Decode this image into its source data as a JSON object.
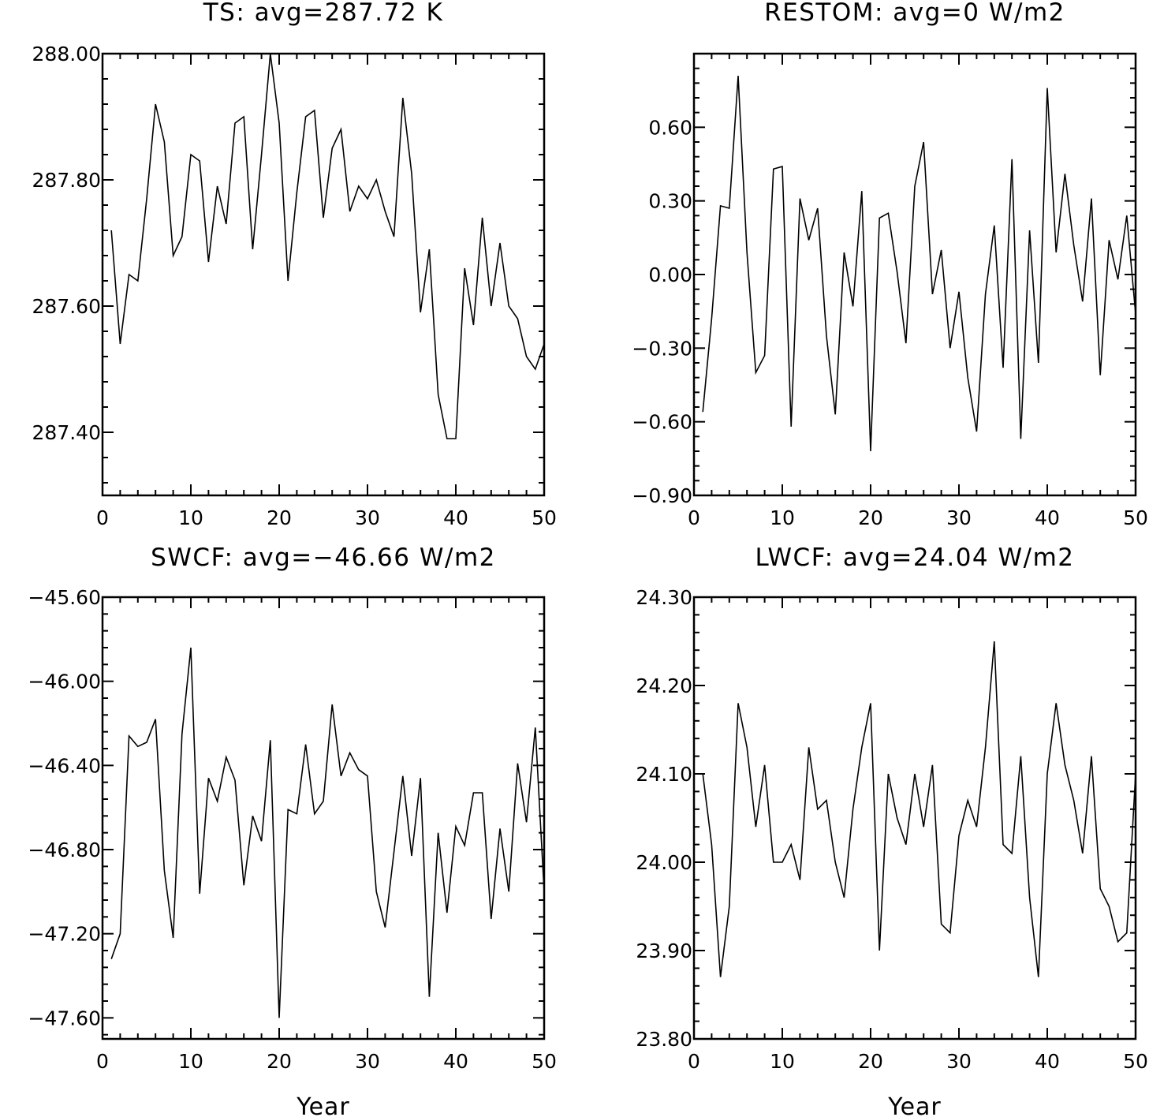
{
  "chart_data": [
    {
      "type": "line",
      "title": "TS: avg=287.72 K",
      "xlabel": "",
      "ylabel": "",
      "xlim": [
        0,
        50
      ],
      "ylim": [
        287.3,
        288.0
      ],
      "xticks": [
        0,
        10,
        20,
        30,
        40,
        50
      ],
      "xtick_labels": [
        "0",
        "10",
        "20",
        "30",
        "40",
        "50"
      ],
      "yticks": [
        287.4,
        287.6,
        287.8,
        288.0
      ],
      "ytick_labels": [
        "287.40",
        "287.60",
        "287.80",
        "288.00"
      ],
      "grid": false,
      "x": [
        1,
        2,
        3,
        4,
        5,
        6,
        7,
        8,
        9,
        10,
        11,
        12,
        13,
        14,
        15,
        16,
        17,
        18,
        19,
        20,
        21,
        22,
        23,
        24,
        25,
        26,
        27,
        28,
        29,
        30,
        31,
        32,
        33,
        34,
        35,
        36,
        37,
        38,
        39,
        40,
        41,
        42,
        43,
        44,
        45,
        46,
        47,
        48,
        49,
        50
      ],
      "values": [
        287.72,
        287.54,
        287.65,
        287.64,
        287.77,
        287.92,
        287.86,
        287.68,
        287.71,
        287.84,
        287.83,
        287.67,
        287.79,
        287.73,
        287.89,
        287.9,
        287.69,
        287.84,
        288.0,
        287.89,
        287.64,
        287.78,
        287.9,
        287.91,
        287.74,
        287.85,
        287.88,
        287.75,
        287.79,
        287.77,
        287.8,
        287.75,
        287.71,
        287.93,
        287.81,
        287.59,
        287.69,
        287.46,
        287.39,
        287.39,
        287.66,
        287.57,
        287.74,
        287.6,
        287.7,
        287.6,
        287.58,
        287.52,
        287.5,
        287.54
      ]
    },
    {
      "type": "line",
      "title": "RESTOM: avg=0 W/m2",
      "xlabel": "",
      "ylabel": "",
      "xlim": [
        0,
        50
      ],
      "ylim": [
        -0.9,
        0.9
      ],
      "xticks": [
        0,
        10,
        20,
        30,
        40,
        50
      ],
      "xtick_labels": [
        "0",
        "10",
        "20",
        "30",
        "40",
        "50"
      ],
      "yticks": [
        -0.9,
        -0.6,
        -0.3,
        0.0,
        0.3,
        0.6
      ],
      "ytick_labels": [
        "−0.90",
        "−0.60",
        "−0.30",
        "0.00",
        "0.30",
        "0.60"
      ],
      "grid": false,
      "x": [
        1,
        2,
        3,
        4,
        5,
        6,
        7,
        8,
        9,
        10,
        11,
        12,
        13,
        14,
        15,
        16,
        17,
        18,
        19,
        20,
        21,
        22,
        23,
        24,
        25,
        26,
        27,
        28,
        29,
        30,
        31,
        32,
        33,
        34,
        35,
        36,
        37,
        38,
        39,
        40,
        41,
        42,
        43,
        44,
        45,
        46,
        47,
        48,
        49,
        50
      ],
      "values": [
        -0.56,
        -0.18,
        0.28,
        0.27,
        0.81,
        0.09,
        -0.4,
        -0.33,
        0.43,
        0.44,
        -0.62,
        0.31,
        0.14,
        0.27,
        -0.25,
        -0.57,
        0.09,
        -0.13,
        0.34,
        -0.72,
        0.23,
        0.25,
        0.01,
        -0.28,
        0.36,
        0.54,
        -0.08,
        0.1,
        -0.3,
        -0.07,
        -0.42,
        -0.64,
        -0.08,
        0.2,
        -0.38,
        0.47,
        -0.67,
        0.18,
        -0.36,
        0.76,
        0.09,
        0.41,
        0.12,
        -0.11,
        0.31,
        -0.41,
        0.14,
        -0.02,
        0.24,
        -0.16
      ]
    },
    {
      "type": "line",
      "title": "SWCF: avg=−46.66 W/m2",
      "xlabel": "Year",
      "ylabel": "",
      "xlim": [
        0,
        50
      ],
      "ylim": [
        -47.7,
        -45.6
      ],
      "xticks": [
        0,
        10,
        20,
        30,
        40,
        50
      ],
      "xtick_labels": [
        "0",
        "10",
        "20",
        "30",
        "40",
        "50"
      ],
      "yticks": [
        -47.6,
        -47.2,
        -46.8,
        -46.4,
        -46.0,
        -45.6
      ],
      "ytick_labels": [
        "−47.60",
        "−47.20",
        "−46.80",
        "−46.40",
        "−46.00",
        "−45.60"
      ],
      "grid": false,
      "x": [
        1,
        2,
        3,
        4,
        5,
        6,
        7,
        8,
        9,
        10,
        11,
        12,
        13,
        14,
        15,
        16,
        17,
        18,
        19,
        20,
        21,
        22,
        23,
        24,
        25,
        26,
        27,
        28,
        29,
        30,
        31,
        32,
        33,
        34,
        35,
        36,
        37,
        38,
        39,
        40,
        41,
        42,
        43,
        44,
        45,
        46,
        47,
        48,
        49,
        50
      ],
      "values": [
        -47.32,
        -47.2,
        -46.26,
        -46.31,
        -46.29,
        -46.18,
        -46.9,
        -47.22,
        -46.25,
        -45.84,
        -47.01,
        -46.46,
        -46.57,
        -46.36,
        -46.47,
        -46.97,
        -46.64,
        -46.76,
        -46.28,
        -47.6,
        -46.61,
        -46.63,
        -46.3,
        -46.63,
        -46.57,
        -46.11,
        -46.45,
        -46.34,
        -46.42,
        -46.45,
        -47.0,
        -47.17,
        -46.81,
        -46.45,
        -46.83,
        -46.46,
        -47.5,
        -46.72,
        -47.1,
        -46.69,
        -46.78,
        -46.53,
        -46.53,
        -47.13,
        -46.7,
        -47.0,
        -46.39,
        -46.67,
        -46.22,
        -47.0
      ]
    },
    {
      "type": "line",
      "title": "LWCF: avg=24.04 W/m2",
      "xlabel": "Year",
      "ylabel": "",
      "xlim": [
        0,
        50
      ],
      "ylim": [
        23.8,
        24.3
      ],
      "xticks": [
        0,
        10,
        20,
        30,
        40,
        50
      ],
      "xtick_labels": [
        "0",
        "10",
        "20",
        "30",
        "40",
        "50"
      ],
      "yticks": [
        23.8,
        23.9,
        24.0,
        24.1,
        24.2,
        24.3
      ],
      "ytick_labels": [
        "23.80",
        "23.90",
        "24.00",
        "24.10",
        "24.20",
        "24.30"
      ],
      "grid": false,
      "x": [
        1,
        2,
        3,
        4,
        5,
        6,
        7,
        8,
        9,
        10,
        11,
        12,
        13,
        14,
        15,
        16,
        17,
        18,
        19,
        20,
        21,
        22,
        23,
        24,
        25,
        26,
        27,
        28,
        29,
        30,
        31,
        32,
        33,
        34,
        35,
        36,
        37,
        38,
        39,
        40,
        41,
        42,
        43,
        44,
        45,
        46,
        47,
        48,
        49,
        50
      ],
      "values": [
        24.1,
        24.02,
        23.87,
        23.95,
        24.18,
        24.13,
        24.04,
        24.11,
        24.0,
        24.0,
        24.02,
        23.98,
        24.13,
        24.06,
        24.07,
        24.0,
        23.96,
        24.06,
        24.13,
        24.18,
        23.9,
        24.1,
        24.05,
        24.02,
        24.1,
        24.04,
        24.11,
        23.93,
        23.92,
        24.03,
        24.07,
        24.04,
        24.13,
        24.25,
        24.02,
        24.01,
        24.12,
        23.96,
        23.87,
        24.1,
        24.18,
        24.11,
        24.07,
        24.01,
        24.12,
        23.97,
        23.95,
        23.91,
        23.92,
        24.1
      ]
    }
  ]
}
